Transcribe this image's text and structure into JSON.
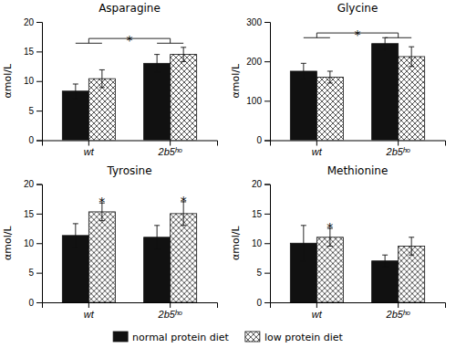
{
  "chart_data": [
    {
      "type": "bar",
      "title": "Asparagine",
      "ylabel": "αmol/L",
      "categories": [
        "wt",
        "2b5ʰᵒ"
      ],
      "series": [
        {
          "name": "normal protein diet",
          "color": "#111111",
          "values": [
            8.3,
            13.0
          ],
          "errors": [
            1.2,
            1.5
          ]
        },
        {
          "name": "low protein diet",
          "color": "#ffffff",
          "values": [
            10.4,
            14.5
          ],
          "errors": [
            1.5,
            1.2
          ]
        }
      ],
      "ylim": [
        0,
        20
      ],
      "yticks": [
        0,
        5,
        10,
        15,
        20
      ],
      "grid": false,
      "annotations": [
        {
          "text": "*",
          "bracket": [
            0,
            1
          ],
          "y": 17.2,
          "inner_y": 16.4
        }
      ],
      "legend": "bottom"
    },
    {
      "type": "bar",
      "title": "Glycine",
      "ylabel": "αmol/L",
      "categories": [
        "wt",
        "2b5ʰᵒ"
      ],
      "series": [
        {
          "name": "normal protein diet",
          "color": "#111111",
          "values": [
            175,
            245
          ],
          "errors": [
            20,
            15
          ]
        },
        {
          "name": "low protein diet",
          "color": "#ffffff",
          "values": [
            160,
            212
          ],
          "errors": [
            15,
            25
          ]
        }
      ],
      "ylim": [
        0,
        300
      ],
      "yticks": [
        0,
        100,
        200,
        300
      ],
      "grid": false,
      "annotations": [
        {
          "text": "*",
          "bracket": [
            0,
            1
          ],
          "y": 272,
          "inner_y": 260
        }
      ]
    },
    {
      "type": "bar",
      "title": "Tyrosine",
      "ylabel": "αmol/L",
      "categories": [
        "wt",
        "2b5ʰᵒ"
      ],
      "series": [
        {
          "name": "normal protein diet",
          "color": "#111111",
          "values": [
            11.3,
            11.0
          ],
          "errors": [
            2.0,
            2.0
          ]
        },
        {
          "name": "low protein diet",
          "color": "#ffffff",
          "values": [
            15.3,
            15.0
          ],
          "errors": [
            1.5,
            2.0
          ]
        }
      ],
      "ylim": [
        0,
        20
      ],
      "yticks": [
        0,
        5,
        10,
        15,
        20
      ],
      "grid": false,
      "annotations": [
        {
          "text": "*",
          "series": 1,
          "category": 0
        },
        {
          "text": "*",
          "series": 1,
          "category": 1
        }
      ]
    },
    {
      "type": "bar",
      "title": "Methionine",
      "ylabel": "αmol/L",
      "categories": [
        "wt",
        "2b5ʰᵒ"
      ],
      "series": [
        {
          "name": "normal protein diet",
          "color": "#111111",
          "values": [
            10.0,
            7.0
          ],
          "errors": [
            3.0,
            1.0
          ]
        },
        {
          "name": "low protein diet",
          "color": "#ffffff",
          "values": [
            11.0,
            9.5
          ],
          "errors": [
            1.5,
            1.5
          ]
        }
      ],
      "ylim": [
        0,
        20
      ],
      "yticks": [
        0,
        5,
        10,
        15,
        20
      ],
      "grid": false,
      "annotations": [
        {
          "text": "*",
          "series": 1,
          "category": 0
        }
      ]
    }
  ]
}
